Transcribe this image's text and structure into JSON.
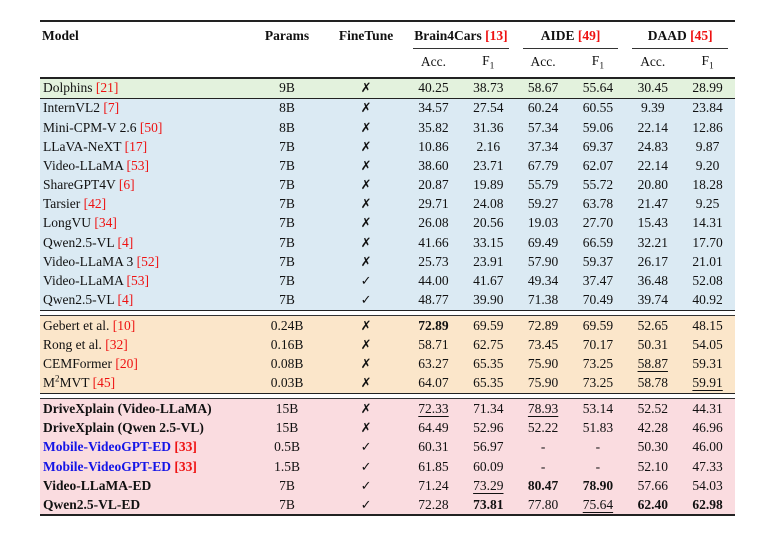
{
  "colors": {
    "section_green": "#e3f2dd",
    "section_blue": "#dbeaf3",
    "section_orange": "#fbe6ca",
    "section_pink": "#fadce0",
    "citation_red": "#ee1111",
    "model_name_blue": "#1515e6",
    "rule_dark": "#222222"
  },
  "table": {
    "headers": {
      "model": "Model",
      "params": "Params",
      "finetune": "FineTune",
      "groups": [
        {
          "name": "Brain4Cars",
          "cite": "[13]"
        },
        {
          "name": "AIDE",
          "cite": "[49]"
        },
        {
          "name": "DAAD",
          "cite": "[45]"
        }
      ],
      "acc": "Acc.",
      "f1_main": "F",
      "f1_sub": "1"
    },
    "sections": [
      {
        "id": "green",
        "rows": [
          {
            "model": "Dolphins",
            "cite": "[21]",
            "name_style": "",
            "params": "9B",
            "finetune": "✗",
            "values": [
              "40.25",
              "38.73",
              "58.67",
              "55.64",
              "30.45",
              "28.99"
            ],
            "styles": [
              "",
              "",
              "",
              "",
              "",
              ""
            ]
          }
        ]
      },
      {
        "id": "blue",
        "rows": [
          {
            "model": "InternVL2",
            "cite": "[7]",
            "name_style": "",
            "params": "8B",
            "finetune": "✗",
            "values": [
              "34.57",
              "27.54",
              "60.24",
              "60.55",
              "9.39",
              "23.84"
            ],
            "styles": [
              "",
              "",
              "",
              "",
              "",
              ""
            ]
          },
          {
            "model": "Mini-CPM-V 2.6",
            "cite": "[50]",
            "name_style": "",
            "params": "8B",
            "finetune": "✗",
            "values": [
              "35.82",
              "31.36",
              "57.34",
              "59.06",
              "22.14",
              "12.86"
            ],
            "styles": [
              "",
              "",
              "",
              "",
              "",
              ""
            ]
          },
          {
            "model": "LLaVA-NeXT",
            "cite": "[17]",
            "name_style": "",
            "params": "7B",
            "finetune": "✗",
            "values": [
              "10.86",
              "2.16",
              "37.34",
              "69.37",
              "24.83",
              "9.87"
            ],
            "styles": [
              "",
              "",
              "",
              "",
              "",
              ""
            ]
          },
          {
            "model": "Video-LLaMA",
            "cite": "[53]",
            "name_style": "",
            "params": "7B",
            "finetune": "✗",
            "values": [
              "38.60",
              "23.71",
              "67.79",
              "62.07",
              "22.14",
              "9.20"
            ],
            "styles": [
              "",
              "",
              "",
              "",
              "",
              ""
            ]
          },
          {
            "model": "ShareGPT4V",
            "cite": "[6]",
            "name_style": "",
            "params": "7B",
            "finetune": "✗",
            "values": [
              "20.87",
              "19.89",
              "55.79",
              "55.72",
              "20.80",
              "18.28"
            ],
            "styles": [
              "",
              "",
              "",
              "",
              "",
              ""
            ]
          },
          {
            "model": "Tarsier",
            "cite": "[42]",
            "name_style": "",
            "params": "7B",
            "finetune": "✗",
            "values": [
              "29.71",
              "24.08",
              "59.27",
              "63.78",
              "21.47",
              "9.25"
            ],
            "styles": [
              "",
              "",
              "",
              "",
              "",
              ""
            ]
          },
          {
            "model": "LongVU",
            "cite": "[34]",
            "name_style": "",
            "params": "7B",
            "finetune": "✗",
            "values": [
              "26.08",
              "20.56",
              "19.03",
              "27.70",
              "15.43",
              "14.31"
            ],
            "styles": [
              "",
              "",
              "",
              "",
              "",
              ""
            ]
          },
          {
            "model": "Qwen2.5-VL",
            "cite": "[4]",
            "name_style": "",
            "params": "7B",
            "finetune": "✗",
            "values": [
              "41.66",
              "33.15",
              "69.49",
              "66.59",
              "32.21",
              "17.70"
            ],
            "styles": [
              "",
              "",
              "",
              "",
              "",
              ""
            ]
          },
          {
            "model": "Video-LLaMA 3",
            "cite": "[52]",
            "name_style": "",
            "params": "7B",
            "finetune": "✗",
            "values": [
              "25.73",
              "23.91",
              "57.90",
              "59.37",
              "26.17",
              "21.01"
            ],
            "styles": [
              "",
              "",
              "",
              "",
              "",
              ""
            ]
          },
          {
            "model": "Video-LLaMA",
            "cite": "[53]",
            "name_style": "",
            "params": "7B",
            "finetune": "✓",
            "values": [
              "44.00",
              "41.67",
              "49.34",
              "37.47",
              "36.48",
              "52.08"
            ],
            "styles": [
              "",
              "",
              "",
              "",
              "",
              ""
            ]
          },
          {
            "model": "Qwen2.5-VL",
            "cite": "[4]",
            "name_style": "",
            "params": "7B",
            "finetune": "✓",
            "values": [
              "48.77",
              "39.90",
              "71.38",
              "70.49",
              "39.74",
              "40.92"
            ],
            "styles": [
              "",
              "",
              "",
              "",
              "",
              ""
            ]
          }
        ]
      },
      {
        "id": "orange",
        "rows": [
          {
            "model": "Gebert et al.",
            "cite": "[10]",
            "name_style": "",
            "params": "0.24B",
            "finetune": "✗",
            "values": [
              "72.89",
              "69.59",
              "72.89",
              "69.59",
              "52.65",
              "48.15"
            ],
            "styles": [
              "b",
              "",
              "",
              "",
              "",
              ""
            ]
          },
          {
            "model": "Rong et al.",
            "cite": "[32]",
            "name_style": "",
            "params": "0.16B",
            "finetune": "✗",
            "values": [
              "58.71",
              "62.75",
              "73.45",
              "70.17",
              "50.31",
              "54.05"
            ],
            "styles": [
              "",
              "",
              "",
              "",
              "",
              ""
            ]
          },
          {
            "model": "CEMFormer",
            "cite": "[20]",
            "name_style": "",
            "params": "0.08B",
            "finetune": "✗",
            "values": [
              "63.27",
              "65.35",
              "75.90",
              "73.25",
              "58.87",
              "59.31"
            ],
            "styles": [
              "",
              "",
              "",
              "",
              "u",
              ""
            ]
          },
          {
            "model": "M^2MVT",
            "cite": "[45]",
            "name_style": "",
            "params": "0.03B",
            "finetune": "✗",
            "values": [
              "64.07",
              "65.35",
              "75.90",
              "73.25",
              "58.78",
              "59.91"
            ],
            "styles": [
              "",
              "",
              "",
              "",
              "",
              "u"
            ]
          }
        ]
      },
      {
        "id": "pink",
        "rows": [
          {
            "model": "DriveXplain (Video-LLaMA)",
            "cite": "",
            "name_style": "bold",
            "params": "15B",
            "finetune": "✗",
            "values": [
              "72.33",
              "71.34",
              "78.93",
              "53.14",
              "52.52",
              "44.31"
            ],
            "styles": [
              "u",
              "",
              "u",
              "",
              "",
              ""
            ]
          },
          {
            "model": "DriveXplain (Qwen 2.5-VL)",
            "cite": "",
            "name_style": "bold",
            "params": "15B",
            "finetune": "✗",
            "values": [
              "64.49",
              "52.96",
              "52.22",
              "51.83",
              "42.28",
              "46.96"
            ],
            "styles": [
              "",
              "",
              "",
              "",
              "",
              ""
            ]
          },
          {
            "model": "Mobile-VideoGPT-ED",
            "cite": "[33]",
            "name_style": "bold-blue",
            "params": "0.5B",
            "finetune": "✓",
            "values": [
              "60.31",
              "56.97",
              "-",
              "-",
              "50.30",
              "46.00"
            ],
            "styles": [
              "",
              "",
              "",
              "",
              "",
              ""
            ]
          },
          {
            "model": "Mobile-VideoGPT-ED",
            "cite": "[33]",
            "name_style": "bold-blue",
            "params": "1.5B",
            "finetune": "✓",
            "values": [
              "61.85",
              "60.09",
              "-",
              "-",
              "52.10",
              "47.33"
            ],
            "styles": [
              "",
              "",
              "",
              "",
              "",
              ""
            ]
          },
          {
            "model": "Video-LLaMA-ED",
            "cite": "",
            "name_style": "bold",
            "params": "7B",
            "finetune": "✓",
            "values": [
              "71.24",
              "73.29",
              "80.47",
              "78.90",
              "57.66",
              "54.03"
            ],
            "styles": [
              "",
              "u",
              "b",
              "b",
              "",
              ""
            ]
          },
          {
            "model": "Qwen2.5-VL-ED",
            "cite": "",
            "name_style": "bold",
            "params": "7B",
            "finetune": "✓",
            "values": [
              "72.28",
              "73.81",
              "77.80",
              "75.64",
              "62.40",
              "62.98"
            ],
            "styles": [
              "",
              "b",
              "",
              "u",
              "b",
              "b"
            ]
          }
        ]
      }
    ]
  }
}
